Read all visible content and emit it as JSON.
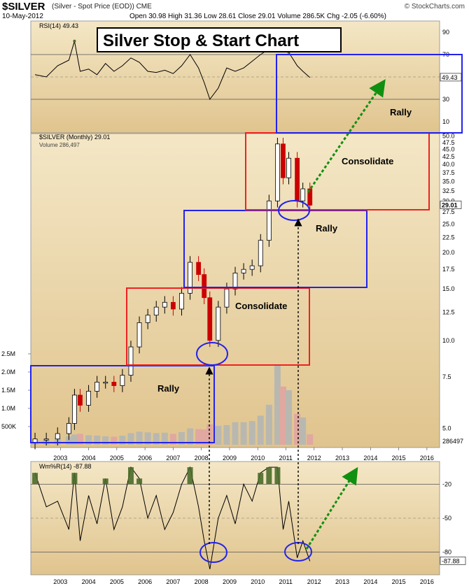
{
  "header": {
    "ticker": "$SILVER",
    "description": "(Silver - Spot Price (EOD)) CME",
    "date": "10-May-2012",
    "quote": "Open 30.98  High 31.36  Low 28.61  Close 29.01  Volume 286.5K  Chg -2.05 (-6.60%)",
    "source": "© StockCharts.com"
  },
  "title": "Silver Stop & Start Chart",
  "colors": {
    "up": "#000000",
    "down": "#cc0000",
    "panel_bg": "#e7d3a8",
    "blue_box": "#2222ee",
    "red_box": "#ee2222",
    "arrow": "#109010",
    "oscillator_fill": "#4a6b2a"
  },
  "chart_data": [
    {
      "type": "line",
      "panel": "RSI",
      "legend": "RSI(14) 49.43",
      "last_label": "49.43",
      "ylim": [
        0,
        100
      ],
      "yticks": [
        90,
        70,
        50,
        30,
        10
      ],
      "reference_lines": [
        70,
        30
      ],
      "x": [
        2002.6,
        2003.0,
        2003.4,
        2003.8,
        2004.0,
        2004.2,
        2004.5,
        2004.8,
        2005.1,
        2005.4,
        2005.7,
        2006.0,
        2006.3,
        2006.6,
        2006.9,
        2007.2,
        2007.5,
        2007.8,
        2008.1,
        2008.4,
        2008.6,
        2008.8,
        2009.1,
        2009.4,
        2009.7,
        2010.0,
        2010.3,
        2010.6,
        2010.9,
        2011.2,
        2011.4,
        2011.6,
        2011.9,
        2012.1,
        2012.35
      ],
      "values": [
        52,
        50,
        60,
        65,
        82,
        55,
        57,
        52,
        62,
        55,
        60,
        67,
        63,
        55,
        54,
        56,
        53,
        60,
        70,
        58,
        45,
        30,
        40,
        58,
        55,
        58,
        64,
        70,
        75,
        82,
        76,
        72,
        60,
        55,
        49.43
      ]
    },
    {
      "type": "candlestick",
      "panel": "Price",
      "legend": "$SILVER (Monthly) 29.01",
      "volume_legend": "Volume 286,497",
      "last_label": "29.01",
      "volume_last_label": "286497",
      "y_scale": "log",
      "ylim": [
        4.3,
        51
      ],
      "yticks": [
        5.0,
        7.5,
        10.0,
        12.5,
        15.0,
        17.5,
        20.0,
        22.5,
        25.0,
        27.5,
        30.0,
        32.5,
        35.0,
        37.5,
        40.0,
        42.5,
        45.0,
        47.5,
        50.0
      ],
      "volume_ticks": [
        "500K",
        "1.0M",
        "1.5M",
        "2.0M",
        "2.5M"
      ],
      "xticks": [
        "2003",
        "2004",
        "2005",
        "2006",
        "2007",
        "2008",
        "2009",
        "2010",
        "2011",
        "2012",
        "2013",
        "2014",
        "2015",
        "2016"
      ],
      "x": [
        2002.6,
        2003.0,
        2003.4,
        2003.8,
        2004.0,
        2004.2,
        2004.5,
        2004.8,
        2005.1,
        2005.4,
        2005.7,
        2006.0,
        2006.3,
        2006.6,
        2006.9,
        2007.2,
        2007.5,
        2007.8,
        2008.1,
        2008.4,
        2008.6,
        2008.8,
        2009.1,
        2009.4,
        2009.7,
        2010.0,
        2010.3,
        2010.6,
        2010.9,
        2011.2,
        2011.4,
        2011.6,
        2011.9,
        2012.1,
        2012.35
      ],
      "close": [
        4.6,
        4.6,
        4.8,
        5.2,
        6.5,
        6.0,
        6.7,
        7.2,
        7.2,
        7.0,
        7.6,
        9.5,
        11.5,
        12.2,
        13.0,
        13.5,
        12.8,
        14.5,
        18.5,
        16.8,
        14.0,
        10.0,
        13.0,
        15.0,
        17.0,
        17.5,
        18.0,
        22.0,
        30.0,
        47.0,
        36.0,
        42.0,
        30.0,
        33.0,
        29.01
      ],
      "volume_k": [
        150,
        170,
        220,
        230,
        280,
        300,
        260,
        250,
        230,
        220,
        250,
        320,
        360,
        340,
        320,
        330,
        300,
        350,
        450,
        430,
        420,
        560,
        520,
        540,
        620,
        620,
        650,
        800,
        1100,
        2200,
        1600,
        1500,
        850,
        750,
        286
      ]
    },
    {
      "type": "line",
      "panel": "Williams %R",
      "legend": "Wm%R(14) -87.88",
      "last_label": "-87.88",
      "ylim": [
        -100,
        0
      ],
      "yticks": [
        -20,
        -50,
        -80
      ],
      "reference_lines": [
        -20,
        -80
      ],
      "xticks": [
        "2003",
        "2004",
        "2005",
        "2006",
        "2007",
        "2008",
        "2009",
        "2010",
        "2011",
        "2012",
        "2013",
        "2014",
        "2015",
        "2016"
      ],
      "x": [
        2002.6,
        2003.0,
        2003.4,
        2003.8,
        2004.0,
        2004.2,
        2004.5,
        2004.8,
        2005.1,
        2005.4,
        2005.7,
        2006.0,
        2006.3,
        2006.6,
        2006.9,
        2007.2,
        2007.5,
        2007.8,
        2008.1,
        2008.4,
        2008.6,
        2008.8,
        2009.1,
        2009.4,
        2009.7,
        2010.0,
        2010.3,
        2010.6,
        2010.9,
        2011.2,
        2011.4,
        2011.6,
        2011.9,
        2012.1,
        2012.35
      ],
      "values": [
        -10,
        -40,
        -35,
        -60,
        -10,
        -70,
        -30,
        -55,
        -15,
        -60,
        -40,
        -5,
        -15,
        -50,
        -30,
        -60,
        -45,
        -20,
        -5,
        -40,
        -70,
        -95,
        -50,
        -30,
        -55,
        -20,
        -35,
        -10,
        -5,
        -5,
        -60,
        -35,
        -85,
        -70,
        -87.88
      ]
    }
  ],
  "annotations": [
    {
      "label": "Rally"
    },
    {
      "label": "Consolidate"
    },
    {
      "label": "Rally"
    },
    {
      "label": "Consolidate"
    },
    {
      "label": "Rally"
    }
  ]
}
